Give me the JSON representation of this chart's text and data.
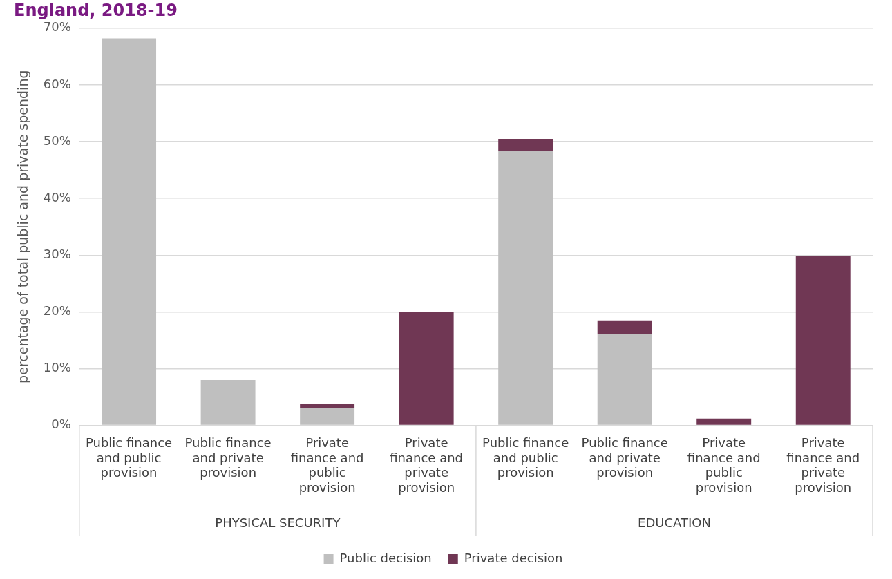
{
  "chart_data": {
    "type": "bar",
    "title": "England, 2018-19",
    "ylabel": "percentage of total public and private spending",
    "categories": [
      "Public finance and public provision",
      "Public finance and private provision",
      "Private finance and public provision",
      "Private finance and private provision",
      "Public finance and public provision",
      "Public finance and private provision",
      "Private finance and public provision",
      "Private finance and private provision"
    ],
    "series": [
      {
        "name": "Public decision",
        "color": "#bfbfbf",
        "values": [
          68.2,
          8.0,
          3.0,
          0,
          48.4,
          16.1,
          0,
          0
        ]
      },
      {
        "name": "Private decision",
        "color": "#703754",
        "values": [
          0,
          0,
          0.8,
          20.0,
          2.1,
          2.4,
          1.2,
          29.9
        ]
      }
    ],
    "stacked": true,
    "ylim": [
      0,
      70
    ],
    "yticks": [
      {
        "value": 0,
        "label": "0%"
      },
      {
        "value": 10,
        "label": "10%"
      },
      {
        "value": 20,
        "label": "20%"
      },
      {
        "value": 30,
        "label": "30%"
      },
      {
        "value": 40,
        "label": "40%"
      },
      {
        "value": 50,
        "label": "50%"
      },
      {
        "value": 60,
        "label": "60%"
      },
      {
        "value": 70,
        "label": "70%"
      }
    ],
    "grid": "y",
    "legend": "bottom",
    "annotations": [
      "PHYSICAL SECURITY",
      "EDUCATION"
    ]
  }
}
